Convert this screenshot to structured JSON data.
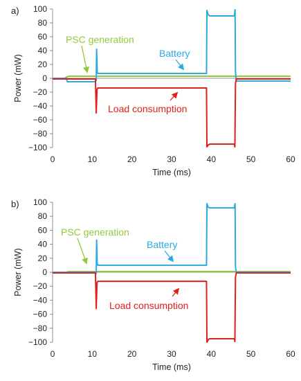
{
  "colors": {
    "battery": "#29abe2",
    "load": "#e0201b",
    "psc": "#92c83e",
    "axis": "#8c8c8c",
    "text": "#222222"
  },
  "chart_data": [
    {
      "type": "line",
      "panel_label": "a)",
      "xlabel": "Time (ms)",
      "ylabel": "Power (mW)",
      "xlim": [
        0,
        60
      ],
      "ylim": [
        -100,
        100
      ],
      "xticks": [
        0,
        10,
        20,
        30,
        40,
        50,
        60
      ],
      "yticks": [
        100,
        80,
        60,
        40,
        20,
        0,
        -20,
        -40,
        -60,
        -80,
        -100
      ],
      "grid": false,
      "annotations": [
        {
          "text": "PSC generation",
          "color": "psc"
        },
        {
          "text": "Battery",
          "color": "battery"
        },
        {
          "text": "Load consumption",
          "color": "load"
        }
      ],
      "series": [
        {
          "name": "Battery",
          "color": "battery",
          "x": [
            0,
            3.5,
            3.7,
            10.8,
            11.0,
            11.1,
            11.25,
            11.4,
            38.8,
            38.9,
            39.2,
            39.6,
            45.8,
            46.0,
            46.1,
            46.3,
            60
          ],
          "y": [
            0,
            0,
            -5,
            -5,
            -3,
            42,
            9,
            7,
            7,
            98,
            92,
            90,
            90,
            99,
            10,
            -4,
            -4
          ]
        },
        {
          "name": "Load consumption",
          "color": "load",
          "x": [
            0,
            10.8,
            11.0,
            11.2,
            11.4,
            38.8,
            38.9,
            39.3,
            39.6,
            45.8,
            45.95,
            46.1,
            46.3,
            60
          ],
          "y": [
            -1,
            -1,
            -50,
            -16,
            -14,
            -14,
            -99,
            -96,
            -95,
            -95,
            -99,
            -8,
            -1,
            -1
          ]
        },
        {
          "name": "PSC generation",
          "color": "psc",
          "x": [
            0,
            3.0,
            3.6,
            4.2,
            60
          ],
          "y": [
            0,
            0,
            2,
            3,
            3
          ]
        }
      ]
    },
    {
      "type": "line",
      "panel_label": "b)",
      "xlabel": "Time (ms)",
      "ylabel": "Power (mW)",
      "xlim": [
        0,
        60
      ],
      "ylim": [
        -100,
        100
      ],
      "xticks": [
        0,
        10,
        20,
        30,
        40,
        50,
        60
      ],
      "yticks": [
        100,
        80,
        60,
        40,
        20,
        0,
        -20,
        -40,
        -60,
        -80,
        -100
      ],
      "grid": false,
      "annotations": [
        {
          "text": "PSC generation",
          "color": "psc"
        },
        {
          "text": "Battery",
          "color": "battery"
        },
        {
          "text": "Load consumption",
          "color": "load"
        }
      ],
      "series": [
        {
          "name": "Battery",
          "color": "battery",
          "x": [
            0,
            10.8,
            11.0,
            11.1,
            11.25,
            11.4,
            38.8,
            38.9,
            39.2,
            39.6,
            45.8,
            46.0,
            46.1,
            46.3,
            60
          ],
          "y": [
            0,
            0,
            -2,
            46,
            12,
            10,
            10,
            98,
            93,
            92,
            92,
            98,
            8,
            0,
            0
          ]
        },
        {
          "name": "Load consumption",
          "color": "load",
          "x": [
            0,
            10.8,
            11.0,
            11.2,
            11.4,
            38.8,
            38.9,
            39.3,
            39.6,
            45.8,
            45.95,
            46.1,
            46.3,
            60
          ],
          "y": [
            -1,
            -1,
            -52,
            -15,
            -13,
            -13,
            -100,
            -96,
            -95,
            -95,
            -99,
            -7,
            -1,
            -1
          ]
        },
        {
          "name": "PSC generation",
          "color": "psc",
          "x": [
            0,
            3.5,
            4.0,
            60
          ],
          "y": [
            0,
            0,
            1,
            1
          ]
        }
      ]
    }
  ]
}
